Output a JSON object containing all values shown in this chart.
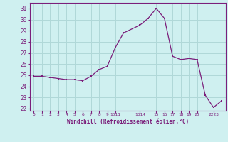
{
  "x": [
    0,
    1,
    2,
    3,
    4,
    5,
    6,
    7,
    8,
    9,
    10,
    11,
    13,
    14,
    15,
    16,
    17,
    18,
    19,
    20,
    21,
    22,
    23
  ],
  "y": [
    24.9,
    24.9,
    24.8,
    24.7,
    24.6,
    24.6,
    24.5,
    24.9,
    25.5,
    25.8,
    27.5,
    28.8,
    29.5,
    30.1,
    31.0,
    30.1,
    26.7,
    26.4,
    26.5,
    26.4,
    23.2,
    22.1,
    22.7
  ],
  "line_color": "#7B1F7B",
  "marker_color": "#7B1F7B",
  "bg_color": "#cff0f0",
  "grid_color": "#b0d8d8",
  "xlabel": "Windchill (Refroidissement éolien,°C)",
  "ylim_min": 21.8,
  "ylim_max": 31.5,
  "yticks": [
    22,
    23,
    24,
    25,
    26,
    27,
    28,
    29,
    30,
    31
  ],
  "axis_color": "#7B1F7B",
  "tick_color": "#7B1F7B",
  "label_color": "#7B1F7B"
}
